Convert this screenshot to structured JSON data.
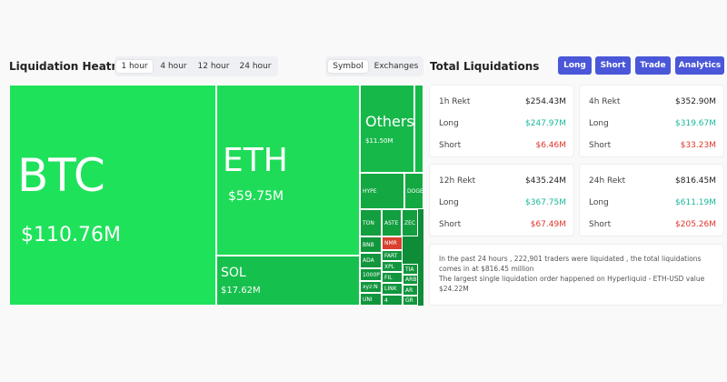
{
  "header": {
    "title": "Liquidation Heatmap",
    "time_tabs": [
      "1 hour",
      "4 hour",
      "12 hour",
      "24 hour"
    ],
    "view_tabs": [
      "Symbol",
      "Exchanges"
    ]
  },
  "totals": {
    "title": "Total Liquidations",
    "buttons": [
      "Long",
      "Short",
      "Trade",
      "Analytics"
    ]
  },
  "heatmap": {
    "tiles": [
      {
        "label": "BTC",
        "value": "$110.76M"
      },
      {
        "label": "ETH",
        "value": "$59.75M"
      },
      {
        "label": "SOL",
        "value": "$17.62M"
      },
      {
        "label": "Others",
        "value": "$11.50M"
      },
      {
        "label": "HYPE"
      },
      {
        "label": "DOGE"
      },
      {
        "label": "TON"
      },
      {
        "label": "ASTE"
      },
      {
        "label": "ZEC"
      },
      {
        "label": "BNB"
      },
      {
        "label": "ADA"
      },
      {
        "label": "1000P"
      },
      {
        "label": "xyz:N"
      },
      {
        "label": "UNI"
      },
      {
        "label": "NMR"
      },
      {
        "label": "FART"
      },
      {
        "label": "XPL"
      },
      {
        "label": "FIL"
      },
      {
        "label": "LINK"
      },
      {
        "label": "4"
      },
      {
        "label": "TIA"
      },
      {
        "label": "ARB"
      },
      {
        "label": "AR"
      },
      {
        "label": "GR"
      }
    ]
  },
  "cards": [
    {
      "title": "1h Rekt",
      "total": "$254.43M",
      "long_label": "Long",
      "long": "$247.97M",
      "short_label": "Short",
      "short": "$6.46M"
    },
    {
      "title": "4h Rekt",
      "total": "$352.90M",
      "long_label": "Long",
      "long": "$319.67M",
      "short_label": "Short",
      "short": "$33.23M"
    },
    {
      "title": "12h Rekt",
      "total": "$435.24M",
      "long_label": "Long",
      "long": "$367.75M",
      "short_label": "Short",
      "short": "$67.49M"
    },
    {
      "title": "24h Rekt",
      "total": "$816.45M",
      "long_label": "Long",
      "long": "$611.19M",
      "short_label": "Short",
      "short": "$205.26M"
    }
  ],
  "summary": [
    "In the past 24 hours , 222,901 traders were liquidated , the total liquidations comes in at $816.45 million",
    "The largest single liquidation order happened on Hyperliquid - ETH-USD value $24.22M"
  ]
}
